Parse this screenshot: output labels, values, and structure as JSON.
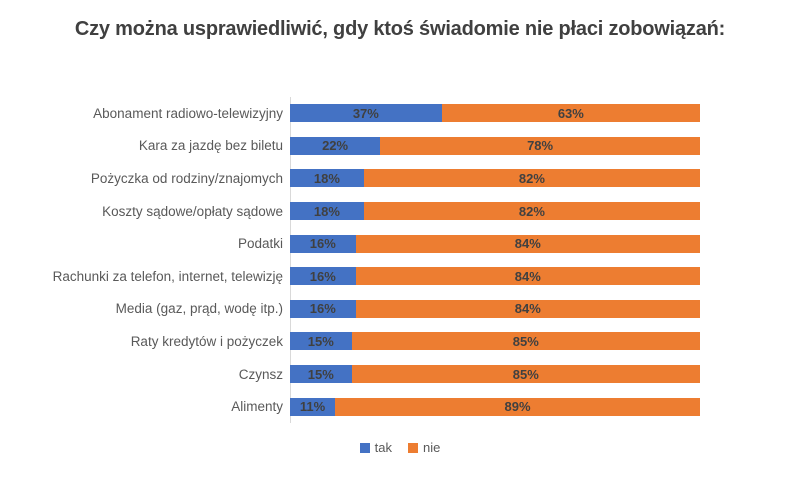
{
  "title": "Czy można usprawiedliwić, gdy ktoś świadomie nie płaci zobowiązań:",
  "colors": {
    "tak": "#4472C4",
    "nie": "#ED7D31",
    "title_text": "#404040",
    "category_text": "#595959",
    "value_label_text": "#404040",
    "axis_line": "#D9D9D9"
  },
  "chart_data": {
    "type": "bar",
    "orientation": "horizontal",
    "stacked": true,
    "grid": false,
    "legend_position": "bottom",
    "xlim": [
      0,
      100
    ],
    "value_suffix": "%",
    "title": "Czy można usprawiedliwić, gdy ktoś świadomie nie płaci zobowiązań:",
    "categories": [
      "Abonament radiowo-telewizyjny",
      "Kara za jazdę bez biletu",
      "Pożyczka od rodziny/znajomych",
      "Koszty sądowe/opłaty sądowe",
      "Podatki",
      "Rachunki za telefon, internet, telewizję",
      "Media (gaz, prąd, wodę itp.)",
      "Raty kredytów i pożyczek",
      "Czynsz",
      "Alimenty"
    ],
    "series": [
      {
        "name": "tak",
        "color": "#4472C4",
        "values": [
          37,
          22,
          18,
          18,
          16,
          16,
          16,
          15,
          15,
          11
        ]
      },
      {
        "name": "nie",
        "color": "#ED7D31",
        "values": [
          63,
          78,
          82,
          82,
          84,
          84,
          84,
          85,
          85,
          89
        ]
      }
    ]
  }
}
